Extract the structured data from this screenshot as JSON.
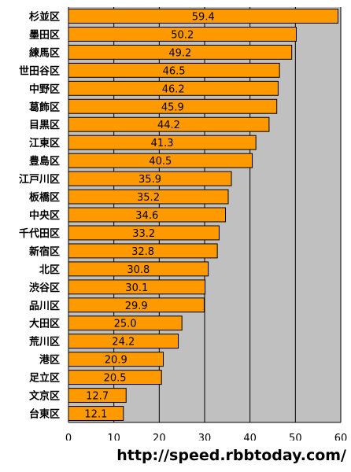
{
  "chart_data": {
    "type": "bar",
    "orientation": "horizontal",
    "categories": [
      "杉並区",
      "墨田区",
      "練馬区",
      "世田谷区",
      "中野区",
      "葛飾区",
      "目黒区",
      "江東区",
      "豊島区",
      "江戸川区",
      "板橋区",
      "中央区",
      "千代田区",
      "新宿区",
      "北区",
      "渋谷区",
      "品川区",
      "大田区",
      "荒川区",
      "港区",
      "足立区",
      "文京区",
      "台東区"
    ],
    "values": [
      59.4,
      50.2,
      49.2,
      46.5,
      46.2,
      45.9,
      44.2,
      41.3,
      40.5,
      35.9,
      35.2,
      34.6,
      33.2,
      32.8,
      30.8,
      30.1,
      29.9,
      25.0,
      24.2,
      20.9,
      20.5,
      12.7,
      12.1
    ],
    "value_labels": [
      "59.4",
      "50.2",
      "49.2",
      "46.5",
      "46.2",
      "45.9",
      "44.2",
      "41.3",
      "40.5",
      "35.9",
      "35.2",
      "34.6",
      "33.2",
      "32.8",
      "30.8",
      "30.1",
      "29.9",
      "25.0",
      "24.2",
      "20.9",
      "20.5",
      "12.7",
      "12.1"
    ],
    "xlim": [
      0,
      60
    ],
    "ticks": [
      0,
      10,
      20,
      30,
      40,
      50,
      60
    ],
    "tick_labels": [
      "0",
      "10",
      "20",
      "30",
      "40",
      "50",
      "60"
    ],
    "grid": true,
    "legend": "none",
    "title": "",
    "xlabel": "",
    "ylabel": "",
    "colors": {
      "bar": "#ff9900",
      "bar_edge": "#000000",
      "plot_bg": "#c0c0c0",
      "gridline": "#000000"
    }
  },
  "footer": {
    "source": "http://speed.rbbtoday.com/"
  }
}
